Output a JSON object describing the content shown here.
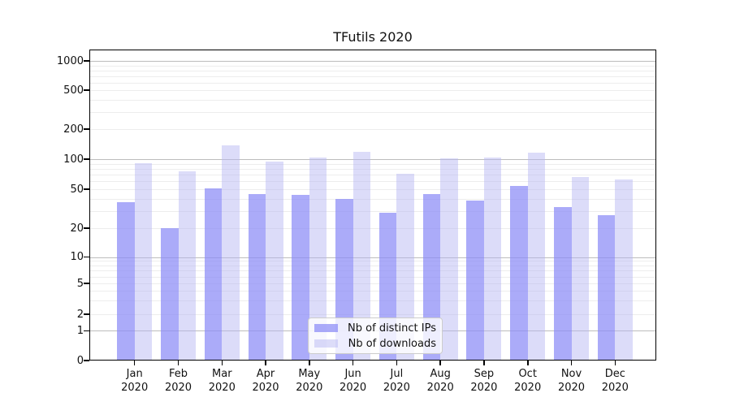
{
  "chart_data": {
    "type": "bar",
    "title": "TFutils 2020",
    "categories": [
      "Jan",
      "Feb",
      "Mar",
      "Apr",
      "May",
      "Jun",
      "Jul",
      "Aug",
      "Sep",
      "Oct",
      "Nov",
      "Dec"
    ],
    "year_label": "2020",
    "series": [
      {
        "name": "Nb of distinct IPs",
        "color": "rgba(138,138,246,0.72)",
        "values": [
          37,
          20,
          51,
          45,
          44,
          40,
          29,
          45,
          38,
          54,
          33,
          27
        ]
      },
      {
        "name": "Nb of downloads",
        "color": "rgba(180,180,243,0.47)",
        "values": [
          91,
          76,
          137,
          95,
          104,
          119,
          72,
          102,
          103,
          116,
          66,
          63
        ]
      }
    ],
    "y_axis": {
      "scale": "symlog",
      "tick_values": [
        0,
        1,
        2,
        5,
        10,
        20,
        50,
        100,
        200,
        500,
        1000
      ],
      "tick_labels": [
        "0",
        "1",
        "2",
        "5",
        "10",
        "20",
        "50",
        "100",
        "200",
        "500",
        "1000"
      ],
      "major_gridlines": [
        1,
        10,
        100,
        1000
      ],
      "minor_gridlines": [
        2,
        3,
        4,
        5,
        6,
        7,
        8,
        9,
        20,
        30,
        40,
        50,
        60,
        70,
        80,
        90,
        200,
        300,
        400,
        500,
        600,
        700,
        800,
        900
      ]
    },
    "xlabel": "",
    "ylabel": "",
    "grid": true,
    "legend_position": "lower center"
  },
  "colors": {
    "major_grid": "#bdbdbd",
    "minor_grid": "#ededed",
    "spine": "#000000",
    "background": "#ffffff"
  }
}
